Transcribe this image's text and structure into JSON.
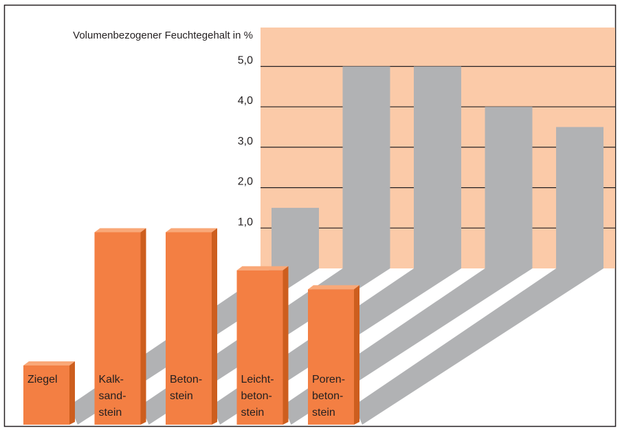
{
  "chart_data": {
    "type": "bar",
    "title": "",
    "ylabel": "Volumenbezogener Feuchtegehalt in %",
    "xlabel": "",
    "ylim": [
      0,
      6
    ],
    "yticks": [
      "1,0",
      "2,0",
      "3,0",
      "4,0",
      "5,0"
    ],
    "categories": [
      {
        "name": "Ziegel",
        "label_lines": [
          "Ziegel"
        ]
      },
      {
        "name": "Kalksandstein",
        "label_lines": [
          "Kalk-",
          "sand-",
          "stein"
        ]
      },
      {
        "name": "Betonstein",
        "label_lines": [
          "Beton-",
          "stein"
        ]
      },
      {
        "name": "Leichtbetonstein",
        "label_lines": [
          "Leicht-",
          "beton-",
          "stein"
        ]
      },
      {
        "name": "Porenbetonstein",
        "label_lines": [
          "Poren-",
          "beton-",
          "stein"
        ]
      }
    ],
    "values": [
      1.5,
      5.0,
      5.0,
      4.0,
      3.5
    ],
    "colors": {
      "panel": "#fbcaa8",
      "bar_back": "#b1b2b4",
      "shadow": "#b1b2b4",
      "bar_front": "#f37f43",
      "bar_side": "#cd5e1e",
      "bar_top": "#f9a878",
      "frame": "#231f20"
    }
  }
}
